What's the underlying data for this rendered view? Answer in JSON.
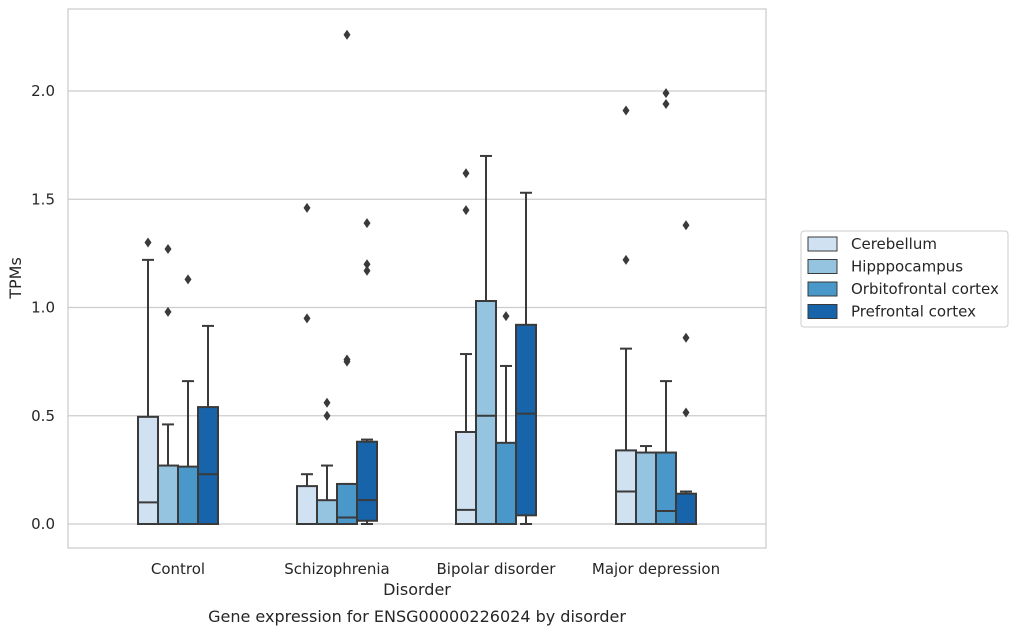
{
  "chart_data": {
    "type": "box",
    "caption": "Gene expression for ENSG00000226024 by disorder",
    "xlabel": "Disorder",
    "ylabel": "TPMs",
    "ylim": [
      -0.11,
      2.38
    ],
    "yticks": [
      0.0,
      0.5,
      1.0,
      1.5,
      2.0
    ],
    "ytick_labels": [
      "0.0",
      "0.5",
      "1.0",
      "1.5",
      "2.0"
    ],
    "grid": "horizontal",
    "legend_position": "right",
    "categories": [
      "Control",
      "Schizophrenia",
      "Bipolar disorder",
      "Major depression"
    ],
    "series": [
      {
        "name": "Cerebellum",
        "color": "#d0e1f2",
        "boxes": [
          {
            "min": 0.0,
            "q1": 0.0,
            "median": 0.1,
            "q3": 0.495,
            "max": 1.22,
            "outliers": [
              1.3
            ]
          },
          {
            "min": 0.0,
            "q1": 0.0,
            "median": 0.0,
            "q3": 0.175,
            "max": 0.23,
            "outliers": [
              0.95,
              1.46
            ]
          },
          {
            "min": 0.0,
            "q1": 0.0,
            "median": 0.065,
            "q3": 0.425,
            "max": 0.785,
            "outliers": [
              1.45,
              1.62
            ]
          },
          {
            "min": 0.0,
            "q1": 0.0,
            "median": 0.15,
            "q3": 0.34,
            "max": 0.81,
            "outliers": [
              1.22,
              1.91
            ]
          }
        ]
      },
      {
        "name": "Hipppocampus",
        "color": "#94c4df",
        "boxes": [
          {
            "min": 0.0,
            "q1": 0.0,
            "median": 0.0,
            "q3": 0.27,
            "max": 0.46,
            "outliers": [
              0.98,
              1.27
            ]
          },
          {
            "min": 0.0,
            "q1": 0.0,
            "median": 0.0,
            "q3": 0.11,
            "max": 0.27,
            "outliers": [
              0.5,
              0.56
            ]
          },
          {
            "min": 0.0,
            "q1": 0.0,
            "median": 0.5,
            "q3": 1.03,
            "max": 1.7,
            "outliers": []
          },
          {
            "min": 0.0,
            "q1": 0.0,
            "median": 0.0,
            "q3": 0.33,
            "max": 0.36,
            "outliers": []
          }
        ]
      },
      {
        "name": "Orbitofrontal cortex",
        "color": "#4a98c9",
        "boxes": [
          {
            "min": 0.0,
            "q1": 0.0,
            "median": 0.0,
            "q3": 0.265,
            "max": 0.66,
            "outliers": [
              1.13
            ]
          },
          {
            "min": 0.0,
            "q1": 0.0,
            "median": 0.03,
            "q3": 0.185,
            "max": 0.185,
            "outliers": [
              0.75,
              0.76,
              2.26
            ]
          },
          {
            "min": 0.0,
            "q1": 0.0,
            "median": 0.0,
            "q3": 0.375,
            "max": 0.73,
            "outliers": [
              0.96
            ]
          },
          {
            "min": 0.0,
            "q1": 0.0,
            "median": 0.06,
            "q3": 0.33,
            "max": 0.66,
            "outliers": [
              1.94,
              1.99
            ]
          }
        ]
      },
      {
        "name": "Prefrontal cortex",
        "color": "#1764ab",
        "boxes": [
          {
            "min": 0.0,
            "q1": 0.0,
            "median": 0.23,
            "q3": 0.54,
            "max": 0.915,
            "outliers": []
          },
          {
            "min": 0.0,
            "q1": 0.015,
            "median": 0.11,
            "q3": 0.38,
            "max": 0.39,
            "outliers": [
              1.17,
              1.2,
              1.39
            ]
          },
          {
            "min": 0.0,
            "q1": 0.04,
            "median": 0.51,
            "q3": 0.92,
            "max": 1.53,
            "outliers": []
          },
          {
            "min": 0.0,
            "q1": 0.0,
            "median": 0.0,
            "q3": 0.14,
            "max": 0.15,
            "outliers": [
              0.515,
              0.86,
              1.38
            ]
          }
        ]
      }
    ]
  }
}
